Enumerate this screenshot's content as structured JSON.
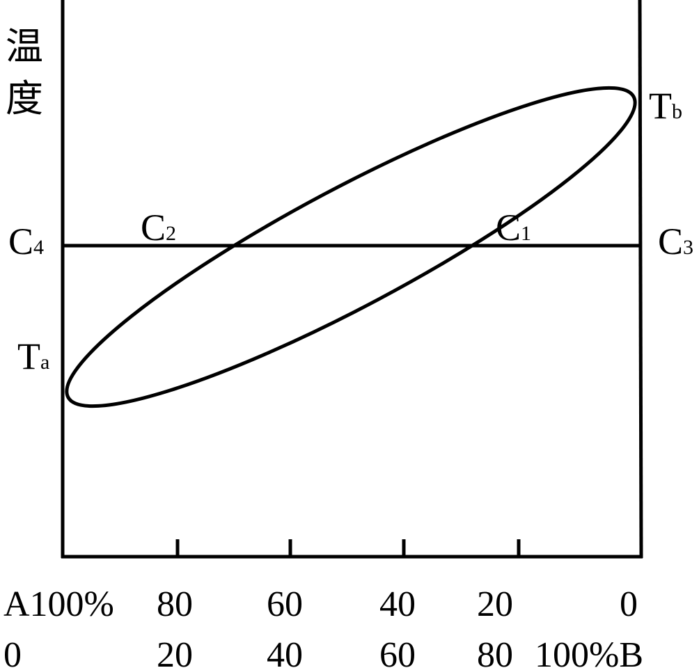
{
  "axis": {
    "label": "温度"
  },
  "points": {
    "tb": {
      "main": "T",
      "sub": "b"
    },
    "ta": {
      "main": "T",
      "sub": "a"
    },
    "c4": {
      "main": "C",
      "sub": "4"
    },
    "c2": {
      "main": "C",
      "sub": "2"
    },
    "c1": {
      "main": "C",
      "sub": "1"
    },
    "c3": {
      "main": "C",
      "sub": "3"
    }
  },
  "scale_a": [
    "A100%",
    "80",
    "60",
    "40",
    "20",
    "0"
  ],
  "scale_b": [
    "0",
    "20",
    "40",
    "60",
    "80",
    "100%B"
  ]
}
